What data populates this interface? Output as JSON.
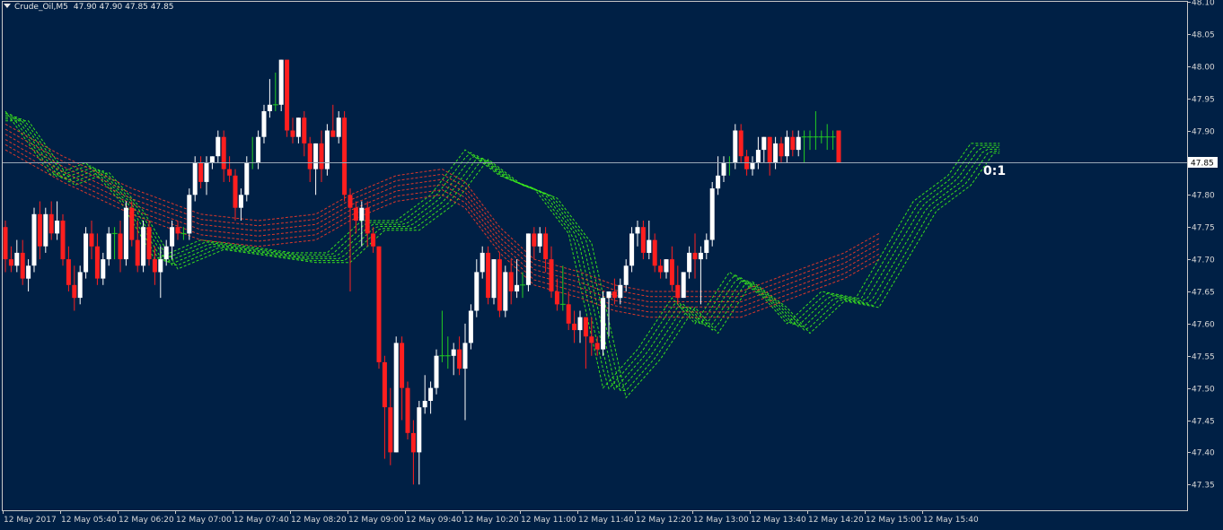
{
  "header": {
    "symbol": "Crude_Oil,M5",
    "ohlc": "47.90 47.90 47.85 47.85",
    "menu_icon": "triangle-down-icon"
  },
  "ratio_label": "0:1",
  "colors": {
    "background": "#002045",
    "bull": "#ffffff",
    "bear": "#ff1f1f",
    "doji": "#22cc22",
    "grid_axis": "#c8c8c8",
    "price_line": "#9aa6b4",
    "fast_bands": "#3ae81c",
    "slow_bands": "#e83a2a"
  },
  "chart_data": {
    "type": "candlestick",
    "symbol": "Crude_Oil",
    "timeframe": "M5",
    "ylim": [
      47.31,
      48.1
    ],
    "yticks": [
      48.1,
      48.05,
      48.0,
      47.95,
      47.9,
      47.85,
      47.8,
      47.75,
      47.7,
      47.65,
      47.6,
      47.55,
      47.5,
      47.45,
      47.4,
      47.35
    ],
    "current_price": 47.85,
    "xticks": [
      "12 May 2017",
      "12 May 05:40",
      "12 May 06:20",
      "12 May 07:00",
      "12 May 07:40",
      "12 May 08:20",
      "12 May 09:00",
      "12 May 09:40",
      "12 May 10:20",
      "12 May 11:00",
      "12 May 11:40",
      "12 May 12:20",
      "12 May 13:00",
      "12 May 13:40",
      "12 May 14:20",
      "12 May 15:00",
      "12 May 15:40"
    ],
    "candles": [
      {
        "o": 47.75,
        "h": 47.76,
        "l": 47.68,
        "c": 47.7
      },
      {
        "o": 47.7,
        "h": 47.72,
        "l": 47.68,
        "c": 47.69
      },
      {
        "o": 47.69,
        "h": 47.73,
        "l": 47.68,
        "c": 47.71
      },
      {
        "o": 47.71,
        "h": 47.73,
        "l": 47.66,
        "c": 47.67
      },
      {
        "o": 47.67,
        "h": 47.7,
        "l": 47.65,
        "c": 47.69
      },
      {
        "o": 47.69,
        "h": 47.78,
        "l": 47.68,
        "c": 47.77
      },
      {
        "o": 47.77,
        "h": 47.79,
        "l": 47.7,
        "c": 47.72
      },
      {
        "o": 47.72,
        "h": 47.78,
        "l": 47.71,
        "c": 47.77
      },
      {
        "o": 47.77,
        "h": 47.79,
        "l": 47.73,
        "c": 47.74
      },
      {
        "o": 47.74,
        "h": 47.79,
        "l": 47.73,
        "c": 47.76
      },
      {
        "o": 47.76,
        "h": 47.77,
        "l": 47.69,
        "c": 47.7
      },
      {
        "o": 47.7,
        "h": 47.72,
        "l": 47.65,
        "c": 47.66
      },
      {
        "o": 47.66,
        "h": 47.69,
        "l": 47.62,
        "c": 47.64
      },
      {
        "o": 47.64,
        "h": 47.69,
        "l": 47.63,
        "c": 47.68
      },
      {
        "o": 47.68,
        "h": 47.75,
        "l": 47.67,
        "c": 47.74
      },
      {
        "o": 47.74,
        "h": 47.76,
        "l": 47.7,
        "c": 47.72
      },
      {
        "o": 47.72,
        "h": 47.74,
        "l": 47.66,
        "c": 47.67
      },
      {
        "o": 47.67,
        "h": 47.71,
        "l": 47.66,
        "c": 47.7
      },
      {
        "o": 47.7,
        "h": 47.75,
        "l": 47.69,
        "c": 47.74
      },
      {
        "o": 47.74,
        "h": 47.75,
        "l": 47.7,
        "c": 47.74
      },
      {
        "o": 47.74,
        "h": 47.76,
        "l": 47.68,
        "c": 47.7
      },
      {
        "o": 47.7,
        "h": 47.79,
        "l": 47.69,
        "c": 47.78
      },
      {
        "o": 47.78,
        "h": 47.79,
        "l": 47.72,
        "c": 47.73
      },
      {
        "o": 47.73,
        "h": 47.76,
        "l": 47.68,
        "c": 47.69
      },
      {
        "o": 47.69,
        "h": 47.76,
        "l": 47.68,
        "c": 47.75
      },
      {
        "o": 47.75,
        "h": 47.76,
        "l": 47.69,
        "c": 47.7
      },
      {
        "o": 47.7,
        "h": 47.72,
        "l": 47.66,
        "c": 47.68
      },
      {
        "o": 47.68,
        "h": 47.72,
        "l": 47.64,
        "c": 47.7
      },
      {
        "o": 47.7,
        "h": 47.73,
        "l": 47.69,
        "c": 47.72
      },
      {
        "o": 47.72,
        "h": 47.76,
        "l": 47.7,
        "c": 47.75
      },
      {
        "o": 47.75,
        "h": 47.76,
        "l": 47.73,
        "c": 47.74
      },
      {
        "o": 47.74,
        "h": 47.75,
        "l": 47.73,
        "c": 47.74
      },
      {
        "o": 47.74,
        "h": 47.81,
        "l": 47.73,
        "c": 47.8
      },
      {
        "o": 47.8,
        "h": 47.86,
        "l": 47.79,
        "c": 47.85
      },
      {
        "o": 47.85,
        "h": 47.86,
        "l": 47.81,
        "c": 47.82
      },
      {
        "o": 47.82,
        "h": 47.86,
        "l": 47.8,
        "c": 47.85
      },
      {
        "o": 47.85,
        "h": 47.86,
        "l": 47.84,
        "c": 47.86
      },
      {
        "o": 47.86,
        "h": 47.9,
        "l": 47.85,
        "c": 47.89
      },
      {
        "o": 47.89,
        "h": 47.9,
        "l": 47.82,
        "c": 47.84
      },
      {
        "o": 47.84,
        "h": 47.86,
        "l": 47.82,
        "c": 47.83
      },
      {
        "o": 47.83,
        "h": 47.84,
        "l": 47.76,
        "c": 47.78
      },
      {
        "o": 47.78,
        "h": 47.81,
        "l": 47.76,
        "c": 47.8
      },
      {
        "o": 47.8,
        "h": 47.86,
        "l": 47.79,
        "c": 47.85
      },
      {
        "o": 47.85,
        "h": 47.89,
        "l": 47.84,
        "c": 47.85
      },
      {
        "o": 47.85,
        "h": 47.9,
        "l": 47.84,
        "c": 47.89
      },
      {
        "o": 47.89,
        "h": 47.94,
        "l": 47.88,
        "c": 47.93
      },
      {
        "o": 47.93,
        "h": 47.98,
        "l": 47.92,
        "c": 47.94
      },
      {
        "o": 47.94,
        "h": 47.99,
        "l": 47.93,
        "c": 47.94
      },
      {
        "o": 47.94,
        "h": 48.01,
        "l": 47.93,
        "c": 48.01
      },
      {
        "o": 48.01,
        "h": 48.01,
        "l": 47.89,
        "c": 47.9
      },
      {
        "o": 47.9,
        "h": 47.92,
        "l": 47.88,
        "c": 47.89
      },
      {
        "o": 47.89,
        "h": 47.92,
        "l": 47.88,
        "c": 47.92
      },
      {
        "o": 47.92,
        "h": 47.93,
        "l": 47.86,
        "c": 47.88
      },
      {
        "o": 47.88,
        "h": 47.89,
        "l": 47.82,
        "c": 47.84
      },
      {
        "o": 47.84,
        "h": 47.88,
        "l": 47.8,
        "c": 47.88
      },
      {
        "o": 47.88,
        "h": 47.9,
        "l": 47.82,
        "c": 47.84
      },
      {
        "o": 47.84,
        "h": 47.91,
        "l": 47.83,
        "c": 47.9
      },
      {
        "o": 47.9,
        "h": 47.94,
        "l": 47.89,
        "c": 47.89
      },
      {
        "o": 47.89,
        "h": 47.93,
        "l": 47.88,
        "c": 47.92
      },
      {
        "o": 47.92,
        "h": 47.93,
        "l": 47.79,
        "c": 47.8
      },
      {
        "o": 47.8,
        "h": 47.81,
        "l": 47.65,
        "c": 47.78
      },
      {
        "o": 47.78,
        "h": 47.79,
        "l": 47.74,
        "c": 47.76
      },
      {
        "o": 47.76,
        "h": 47.79,
        "l": 47.72,
        "c": 47.78
      },
      {
        "o": 47.78,
        "h": 47.79,
        "l": 47.72,
        "c": 47.74
      },
      {
        "o": 47.74,
        "h": 47.75,
        "l": 47.71,
        "c": 47.72
      },
      {
        "o": 47.72,
        "h": 47.72,
        "l": 47.53,
        "c": 47.54
      },
      {
        "o": 47.54,
        "h": 47.55,
        "l": 47.39,
        "c": 47.47
      },
      {
        "o": 47.47,
        "h": 47.5,
        "l": 47.38,
        "c": 47.4
      },
      {
        "o": 47.4,
        "h": 47.58,
        "l": 47.4,
        "c": 47.57
      },
      {
        "o": 47.57,
        "h": 47.58,
        "l": 47.45,
        "c": 47.5
      },
      {
        "o": 47.5,
        "h": 47.51,
        "l": 47.42,
        "c": 47.43
      },
      {
        "o": 47.43,
        "h": 47.45,
        "l": 47.35,
        "c": 47.4
      },
      {
        "o": 47.4,
        "h": 47.48,
        "l": 47.35,
        "c": 47.47
      },
      {
        "o": 47.47,
        "h": 47.52,
        "l": 47.46,
        "c": 47.48
      },
      {
        "o": 47.48,
        "h": 47.51,
        "l": 47.46,
        "c": 47.5
      },
      {
        "o": 47.5,
        "h": 47.56,
        "l": 47.49,
        "c": 47.55
      },
      {
        "o": 47.55,
        "h": 47.62,
        "l": 47.54,
        "c": 47.55
      },
      {
        "o": 47.55,
        "h": 47.58,
        "l": 47.53,
        "c": 47.55
      },
      {
        "o": 47.55,
        "h": 47.57,
        "l": 47.52,
        "c": 47.56
      },
      {
        "o": 47.56,
        "h": 47.58,
        "l": 47.52,
        "c": 47.53
      },
      {
        "o": 47.53,
        "h": 47.6,
        "l": 47.45,
        "c": 47.57
      },
      {
        "o": 47.57,
        "h": 47.63,
        "l": 47.56,
        "c": 47.62
      },
      {
        "o": 47.62,
        "h": 47.7,
        "l": 47.61,
        "c": 47.68
      },
      {
        "o": 47.68,
        "h": 47.72,
        "l": 47.67,
        "c": 47.71
      },
      {
        "o": 47.71,
        "h": 47.72,
        "l": 47.63,
        "c": 47.64
      },
      {
        "o": 47.64,
        "h": 47.7,
        "l": 47.63,
        "c": 47.7
      },
      {
        "o": 47.7,
        "h": 47.71,
        "l": 47.61,
        "c": 47.62
      },
      {
        "o": 47.62,
        "h": 47.69,
        "l": 47.61,
        "c": 47.68
      },
      {
        "o": 47.68,
        "h": 47.7,
        "l": 47.63,
        "c": 47.65
      },
      {
        "o": 47.65,
        "h": 47.7,
        "l": 47.64,
        "c": 47.66
      },
      {
        "o": 47.66,
        "h": 47.68,
        "l": 47.64,
        "c": 47.66
      },
      {
        "o": 47.66,
        "h": 47.74,
        "l": 47.65,
        "c": 47.74
      },
      {
        "o": 47.74,
        "h": 47.75,
        "l": 47.7,
        "c": 47.72
      },
      {
        "o": 47.72,
        "h": 47.75,
        "l": 47.71,
        "c": 47.74
      },
      {
        "o": 47.74,
        "h": 47.75,
        "l": 47.68,
        "c": 47.7
      },
      {
        "o": 47.7,
        "h": 47.72,
        "l": 47.64,
        "c": 47.65
      },
      {
        "o": 47.65,
        "h": 47.67,
        "l": 47.62,
        "c": 47.63
      },
      {
        "o": 47.63,
        "h": 47.69,
        "l": 47.62,
        "c": 47.63
      },
      {
        "o": 47.63,
        "h": 47.65,
        "l": 47.59,
        "c": 47.6
      },
      {
        "o": 47.6,
        "h": 47.62,
        "l": 47.57,
        "c": 47.59
      },
      {
        "o": 47.59,
        "h": 47.62,
        "l": 47.57,
        "c": 47.61
      },
      {
        "o": 47.61,
        "h": 47.61,
        "l": 47.53,
        "c": 47.58
      },
      {
        "o": 47.58,
        "h": 47.61,
        "l": 47.55,
        "c": 47.57
      },
      {
        "o": 47.57,
        "h": 47.58,
        "l": 47.55,
        "c": 47.56
      },
      {
        "o": 47.56,
        "h": 47.65,
        "l": 47.55,
        "c": 47.64
      },
      {
        "o": 47.64,
        "h": 47.65,
        "l": 47.58,
        "c": 47.65
      },
      {
        "o": 47.65,
        "h": 47.67,
        "l": 47.63,
        "c": 47.64
      },
      {
        "o": 47.64,
        "h": 47.67,
        "l": 47.63,
        "c": 47.66
      },
      {
        "o": 47.66,
        "h": 47.7,
        "l": 47.65,
        "c": 47.69
      },
      {
        "o": 47.69,
        "h": 47.75,
        "l": 47.68,
        "c": 47.74
      },
      {
        "o": 47.74,
        "h": 47.76,
        "l": 47.72,
        "c": 47.75
      },
      {
        "o": 47.75,
        "h": 47.76,
        "l": 47.7,
        "c": 47.71
      },
      {
        "o": 47.71,
        "h": 47.76,
        "l": 47.7,
        "c": 47.73
      },
      {
        "o": 47.73,
        "h": 47.74,
        "l": 47.68,
        "c": 47.69
      },
      {
        "o": 47.69,
        "h": 47.7,
        "l": 47.67,
        "c": 47.68
      },
      {
        "o": 47.68,
        "h": 47.7,
        "l": 47.67,
        "c": 47.7
      },
      {
        "o": 47.7,
        "h": 47.72,
        "l": 47.65,
        "c": 47.66
      },
      {
        "o": 47.66,
        "h": 47.69,
        "l": 47.63,
        "c": 47.64
      },
      {
        "o": 47.64,
        "h": 47.68,
        "l": 47.64,
        "c": 47.68
      },
      {
        "o": 47.68,
        "h": 47.72,
        "l": 47.67,
        "c": 47.71
      },
      {
        "o": 47.71,
        "h": 47.74,
        "l": 47.67,
        "c": 47.7
      },
      {
        "o": 47.7,
        "h": 47.72,
        "l": 47.63,
        "c": 47.71
      },
      {
        "o": 47.71,
        "h": 47.74,
        "l": 47.7,
        "c": 47.73
      },
      {
        "o": 47.73,
        "h": 47.82,
        "l": 47.72,
        "c": 47.81
      },
      {
        "o": 47.81,
        "h": 47.86,
        "l": 47.8,
        "c": 47.83
      },
      {
        "o": 47.83,
        "h": 47.86,
        "l": 47.82,
        "c": 47.85
      },
      {
        "o": 47.85,
        "h": 47.86,
        "l": 47.83,
        "c": 47.85
      },
      {
        "o": 47.85,
        "h": 47.91,
        "l": 47.84,
        "c": 47.9
      },
      {
        "o": 47.9,
        "h": 47.91,
        "l": 47.85,
        "c": 47.86
      },
      {
        "o": 47.86,
        "h": 47.87,
        "l": 47.83,
        "c": 47.84
      },
      {
        "o": 47.84,
        "h": 47.86,
        "l": 47.83,
        "c": 47.85
      },
      {
        "o": 47.85,
        "h": 47.89,
        "l": 47.84,
        "c": 47.87
      },
      {
        "o": 47.87,
        "h": 47.89,
        "l": 47.85,
        "c": 47.89
      },
      {
        "o": 47.89,
        "h": 47.89,
        "l": 47.83,
        "c": 47.85
      },
      {
        "o": 47.85,
        "h": 47.89,
        "l": 47.84,
        "c": 47.88
      },
      {
        "o": 47.88,
        "h": 47.89,
        "l": 47.85,
        "c": 47.86
      },
      {
        "o": 47.86,
        "h": 47.9,
        "l": 47.85,
        "c": 47.89
      },
      {
        "o": 47.89,
        "h": 47.9,
        "l": 47.86,
        "c": 47.87
      },
      {
        "o": 47.87,
        "h": 47.9,
        "l": 47.86,
        "c": 47.89
      },
      {
        "o": 47.89,
        "h": 47.9,
        "l": 47.85,
        "c": 47.89
      },
      {
        "o": 47.89,
        "h": 47.9,
        "l": 47.87,
        "c": 47.89
      },
      {
        "o": 47.89,
        "h": 47.93,
        "l": 47.87,
        "c": 47.89
      },
      {
        "o": 47.89,
        "h": 47.9,
        "l": 47.88,
        "c": 47.89
      },
      {
        "o": 47.89,
        "h": 47.91,
        "l": 47.87,
        "c": 47.89
      },
      {
        "o": 47.89,
        "h": 47.9,
        "l": 47.87,
        "c": 47.89
      },
      {
        "o": 47.9,
        "h": 47.9,
        "l": 47.85,
        "c": 47.85
      }
    ],
    "overlays": [
      {
        "color_key": "fast_bands",
        "shift": 4,
        "offsets": [
          0.0,
          0.012,
          0.024,
          0.036,
          0.048,
          0.06
        ],
        "knots": [
          [
            0,
            47.93
          ],
          [
            8,
            47.83
          ],
          [
            14,
            47.85
          ],
          [
            20,
            47.79
          ],
          [
            26,
            47.7
          ],
          [
            34,
            47.73
          ],
          [
            42,
            47.72
          ],
          [
            50,
            47.71
          ],
          [
            56,
            47.71
          ],
          [
            62,
            47.76
          ],
          [
            68,
            47.76
          ],
          [
            74,
            47.8
          ],
          [
            80,
            47.87
          ],
          [
            86,
            47.83
          ],
          [
            92,
            47.81
          ],
          [
            98,
            47.74
          ],
          [
            104,
            47.5
          ],
          [
            110,
            47.56
          ],
          [
            116,
            47.64
          ],
          [
            120,
            47.6
          ],
          [
            126,
            47.68
          ],
          [
            132,
            47.64
          ],
          [
            136,
            47.6
          ],
          [
            142,
            47.65
          ],
          [
            148,
            47.64
          ],
          [
            152,
            47.7
          ],
          [
            158,
            47.79
          ],
          [
            164,
            47.83
          ],
          [
            168,
            47.88
          ],
          [
            173,
            47.88
          ]
        ]
      },
      {
        "color_key": "slow_bands",
        "shift": 0,
        "offsets": [
          0.0,
          0.008,
          0.016,
          0.024,
          0.032,
          0.04
        ],
        "knots": [
          [
            0,
            47.91
          ],
          [
            10,
            47.86
          ],
          [
            22,
            47.81
          ],
          [
            34,
            47.77
          ],
          [
            44,
            47.76
          ],
          [
            54,
            47.77
          ],
          [
            60,
            47.8
          ],
          [
            68,
            47.83
          ],
          [
            76,
            47.84
          ],
          [
            80,
            47.82
          ],
          [
            86,
            47.75
          ],
          [
            92,
            47.7
          ],
          [
            100,
            47.68
          ],
          [
            106,
            47.66
          ],
          [
            112,
            47.65
          ],
          [
            120,
            47.65
          ],
          [
            128,
            47.65
          ],
          [
            134,
            47.67
          ],
          [
            140,
            47.69
          ],
          [
            146,
            47.71
          ],
          [
            152,
            47.74
          ]
        ]
      }
    ]
  }
}
